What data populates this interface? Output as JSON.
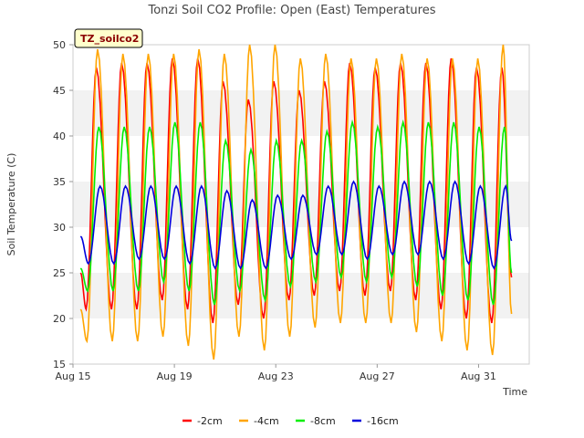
{
  "chart_data": {
    "type": "line",
    "title": "Tonzi Soil CO2 Profile: Open (East) Temperatures",
    "xlabel": "Time",
    "ylabel": "Soil Temperature (C)",
    "badge": "TZ_soilco2",
    "xlim": [
      0,
      18
    ],
    "ylim": [
      15,
      50
    ],
    "xticks": [
      {
        "label": "Aug 15",
        "day": 0
      },
      {
        "label": "Aug 19",
        "day": 4
      },
      {
        "label": "Aug 23",
        "day": 8
      },
      {
        "label": "Aug 27",
        "day": 12
      },
      {
        "label": "Aug 31",
        "day": 16
      }
    ],
    "yticks": [
      15,
      20,
      25,
      30,
      35,
      40,
      45,
      50
    ],
    "grid": "horizontal bands",
    "legend_position": "bottom",
    "days": [
      0.3,
      1.3,
      2.3,
      3.3,
      4.3,
      5.3,
      6.3,
      7.3,
      8.3,
      9.3,
      10.3,
      11.3,
      12.3,
      13.3,
      14.3,
      15.3,
      16.3,
      17.3
    ],
    "series": [
      {
        "name": "-2cm",
        "color": "#ff0000",
        "start": 25.0,
        "end": 24.5,
        "min": [
          21,
          21,
          21,
          22,
          21,
          19.5,
          21.5,
          20,
          22,
          22.5,
          23,
          22.5,
          23,
          22,
          21,
          20,
          19.5,
          20
        ],
        "max": [
          47.5,
          48,
          48,
          48.5,
          48.5,
          46,
          44,
          46,
          45,
          46,
          48,
          47.5,
          48,
          48,
          48.5,
          47.5,
          47.5,
          45
        ]
      },
      {
        "name": "-4cm",
        "color": "#ffa500",
        "start": 21.0,
        "end": 20.5,
        "min": [
          17.5,
          17.5,
          17.5,
          18,
          17,
          15.5,
          18,
          16.5,
          18,
          19,
          19.5,
          19.5,
          19.5,
          18.5,
          17.5,
          16.5,
          16,
          16.5
        ],
        "max": [
          49.5,
          49,
          49,
          49,
          49.5,
          49,
          50,
          50,
          48.5,
          49,
          48.5,
          48.5,
          49,
          48.5,
          48.5,
          48.5,
          50,
          50
        ]
      },
      {
        "name": "-8cm",
        "color": "#00ee00",
        "start": 25.5,
        "end": 25.0,
        "min": [
          23,
          23,
          23,
          24,
          23,
          21.5,
          23,
          22,
          23.5,
          24,
          24.5,
          24,
          24.5,
          23.5,
          22.5,
          22,
          21.5,
          21.5
        ],
        "max": [
          41,
          41,
          41,
          41.5,
          41.5,
          39.5,
          38.5,
          39.5,
          39.5,
          40.5,
          41.5,
          41,
          41.5,
          41.5,
          41.5,
          41,
          41,
          39
        ]
      },
      {
        "name": "-16cm",
        "color": "#0000dd",
        "start": 29.0,
        "end": 28.5,
        "min": [
          26,
          26,
          26.5,
          26.5,
          26,
          25.5,
          25.5,
          25.5,
          26.5,
          27,
          27,
          26.5,
          27,
          27,
          26.5,
          26,
          25.5,
          25.5
        ],
        "max": [
          34.5,
          34.5,
          34.5,
          34.5,
          34.5,
          34,
          33,
          33.5,
          33.5,
          34.5,
          35,
          34.5,
          35,
          35,
          35,
          34.5,
          34.5,
          33.5
        ]
      }
    ]
  }
}
